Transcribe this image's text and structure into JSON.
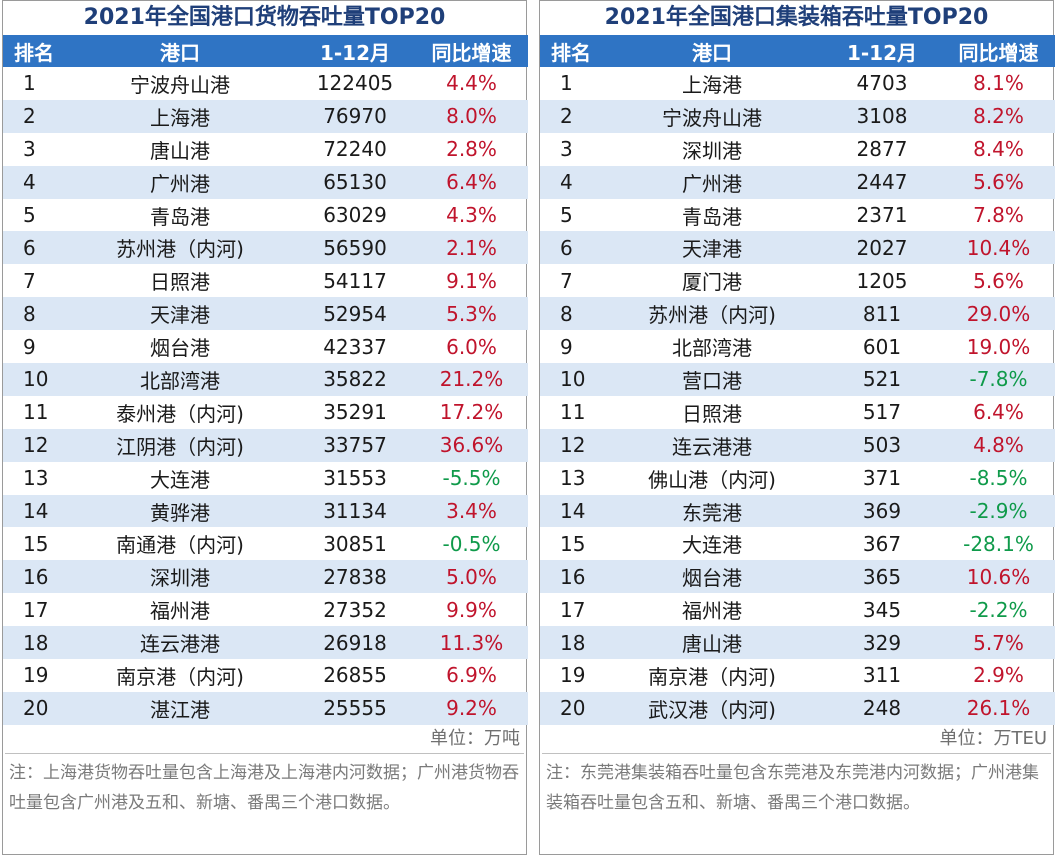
{
  "left": {
    "title": "2021年全国港口货物吞吐量TOP20",
    "headers": [
      "排名",
      "港口",
      "1-12月",
      "同比增速"
    ],
    "rows": [
      [
        "1",
        "宁波舟山港",
        "122405",
        "4.4%"
      ],
      [
        "2",
        "上海港",
        "76970",
        "8.0%"
      ],
      [
        "3",
        "唐山港",
        "72240",
        "2.8%"
      ],
      [
        "4",
        "广州港",
        "65130",
        "6.4%"
      ],
      [
        "5",
        "青岛港",
        "63029",
        "4.3%"
      ],
      [
        "6",
        "苏州港（内河)",
        "56590",
        "2.1%"
      ],
      [
        "7",
        "日照港",
        "54117",
        "9.1%"
      ],
      [
        "8",
        "天津港",
        "52954",
        "5.3%"
      ],
      [
        "9",
        "烟台港",
        "42337",
        "6.0%"
      ],
      [
        "10",
        "北部湾港",
        "35822",
        "21.2%"
      ],
      [
        "11",
        "泰州港（内河)",
        "35291",
        "17.2%"
      ],
      [
        "12",
        "江阴港（内河)",
        "33757",
        "36.6%"
      ],
      [
        "13",
        "大连港",
        "31553",
        "-5.5%"
      ],
      [
        "14",
        "黄骅港",
        "31134",
        "3.4%"
      ],
      [
        "15",
        "南通港（内河)",
        "30851",
        "-0.5%"
      ],
      [
        "16",
        "深圳港",
        "27838",
        "5.0%"
      ],
      [
        "17",
        "福州港",
        "27352",
        "9.9%"
      ],
      [
        "18",
        "连云港港",
        "26918",
        "11.3%"
      ],
      [
        "19",
        "南京港（内河)",
        "26855",
        "6.9%"
      ],
      [
        "20",
        "湛江港",
        "25555",
        "9.2%"
      ]
    ],
    "unit": "单位：万吨",
    "note": "注：上海港货物吞吐量包含上海港及上海港内河数据；广州港货物吞吐量包含广州港及五和、新塘、番禺三个港口数据。",
    "colors": {
      "up": "#c0142c",
      "down": "#0f9a4a"
    }
  },
  "right": {
    "title": "2021年全国港口集装箱吞吐量TOP20",
    "headers": [
      "排名",
      "港口",
      "1-12月",
      "同比增速"
    ],
    "rows": [
      [
        "1",
        "上海港",
        "4703",
        "8.1%"
      ],
      [
        "2",
        "宁波舟山港",
        "3108",
        "8.2%"
      ],
      [
        "3",
        "深圳港",
        "2877",
        "8.4%"
      ],
      [
        "4",
        "广州港",
        "2447",
        "5.6%"
      ],
      [
        "5",
        "青岛港",
        "2371",
        "7.8%"
      ],
      [
        "6",
        "天津港",
        "2027",
        "10.4%"
      ],
      [
        "7",
        "厦门港",
        "1205",
        "5.6%"
      ],
      [
        "8",
        "苏州港（内河)",
        "811",
        "29.0%"
      ],
      [
        "9",
        "北部湾港",
        "601",
        "19.0%"
      ],
      [
        "10",
        "营口港",
        "521",
        "-7.8%"
      ],
      [
        "11",
        "日照港",
        "517",
        "6.4%"
      ],
      [
        "12",
        "连云港港",
        "503",
        "4.8%"
      ],
      [
        "13",
        "佛山港（内河)",
        "371",
        "-8.5%"
      ],
      [
        "14",
        "东莞港",
        "369",
        "-2.9%"
      ],
      [
        "15",
        "大连港",
        "367",
        "-28.1%"
      ],
      [
        "16",
        "烟台港",
        "365",
        "10.6%"
      ],
      [
        "17",
        "福州港",
        "345",
        "-2.2%"
      ],
      [
        "18",
        "唐山港",
        "329",
        "5.7%"
      ],
      [
        "19",
        "南京港（内河)",
        "311",
        "2.9%"
      ],
      [
        "20",
        "武汉港（内河)",
        "248",
        "26.1%"
      ]
    ],
    "unit": "单位：万TEU",
    "note": "注：东莞港集装箱吞吐量包含东莞港及东莞港内河数据；广州港集装箱吞吐量包含五和、新塘、番禺三个港口数据。",
    "colors": {
      "up": "#c0142c",
      "down": "#0f9a4a"
    }
  }
}
